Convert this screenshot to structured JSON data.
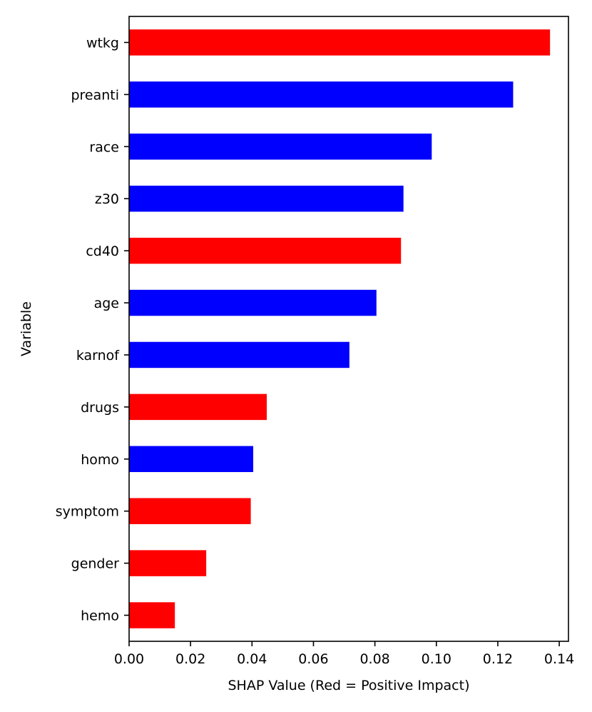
{
  "chart_data": {
    "type": "bar",
    "orientation": "horizontal",
    "title": "",
    "xlabel": "SHAP Value (Red = Positive Impact)",
    "ylabel": "Variable",
    "xlim": [
      0.0,
      0.143
    ],
    "x_ticks": [
      0.0,
      0.02,
      0.04,
      0.06,
      0.08,
      0.1,
      0.12,
      0.14
    ],
    "x_tick_labels": [
      "0.00",
      "0.02",
      "0.04",
      "0.06",
      "0.08",
      "0.10",
      "0.12",
      "0.14"
    ],
    "grid": false,
    "legend": "none",
    "colors": {
      "positive": "#ff0000",
      "negative": "#0000ff"
    },
    "categories": [
      "wtkg",
      "preanti",
      "race",
      "z30",
      "cd40",
      "age",
      "karnof",
      "drugs",
      "homo",
      "symptom",
      "gender",
      "hemo"
    ],
    "values": [
      0.137,
      0.125,
      0.0985,
      0.0893,
      0.0885,
      0.0805,
      0.0717,
      0.0448,
      0.0404,
      0.0396,
      0.0251,
      0.0149
    ],
    "impact": [
      "positive",
      "negative",
      "negative",
      "negative",
      "positive",
      "negative",
      "negative",
      "positive",
      "negative",
      "positive",
      "positive",
      "positive"
    ]
  }
}
